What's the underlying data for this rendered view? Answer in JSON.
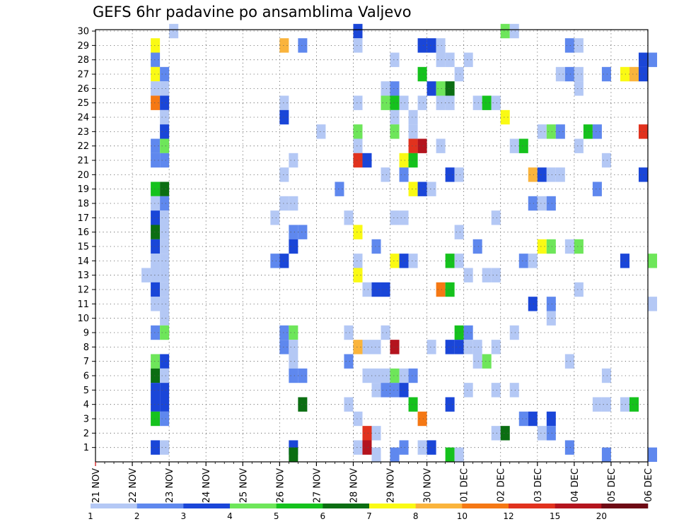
{
  "chart_data": {
    "type": "heatmap",
    "title": "GEFS 6hr padavine po ansamblima Valjevo",
    "xlabel": "",
    "ylabel": "",
    "x_ticks": [
      "21 NOV",
      "22 NOV",
      "23 NOV",
      "24 NOV",
      "25 NOV",
      "26 NOV",
      "27 NOV",
      "28 NOV",
      "29 NOV",
      "30 NOV",
      "01 DEC",
      "02 DEC",
      "03 DEC",
      "04 DEC",
      "05 DEC",
      "06 DEC"
    ],
    "y_ticks": [
      "1",
      "2",
      "3",
      "4",
      "5",
      "6",
      "7",
      "8",
      "9",
      "10",
      "11",
      "12",
      "13",
      "14",
      "15",
      "16",
      "17",
      "18",
      "19",
      "20",
      "21",
      "22",
      "23",
      "24",
      "25",
      "26",
      "27",
      "28",
      "29",
      "30"
    ],
    "xlim_days": [
      0,
      15
    ],
    "ylim": [
      0,
      30
    ],
    "steps_per_day": 4,
    "grid": true,
    "legend_position": "bottom",
    "colorbar": {
      "tick_labels": [
        "1",
        "2",
        "3",
        "4",
        "5",
        "6",
        "7",
        "8",
        "10",
        "12",
        "15",
        "20"
      ],
      "bins": [
        {
          "min": 1,
          "max": 2,
          "color": "#b4c8f5"
        },
        {
          "min": 2,
          "max": 3,
          "color": "#5f88ee"
        },
        {
          "min": 3,
          "max": 4,
          "color": "#1a46d8"
        },
        {
          "min": 4,
          "max": 5,
          "color": "#6ee65a"
        },
        {
          "min": 5,
          "max": 6,
          "color": "#15c21d"
        },
        {
          "min": 6,
          "max": 7,
          "color": "#0b6e12"
        },
        {
          "min": 7,
          "max": 8,
          "color": "#fafa14"
        },
        {
          "min": 8,
          "max": 10,
          "color": "#fab43c"
        },
        {
          "min": 10,
          "max": 12,
          "color": "#f57814"
        },
        {
          "min": 12,
          "max": 15,
          "color": "#e1321e"
        },
        {
          "min": 15,
          "max": 20,
          "color": "#b4141e"
        },
        {
          "min": 20,
          "max": 30,
          "color": "#6e0a14"
        }
      ]
    },
    "cells": [
      {
        "m": 30,
        "t": 8,
        "v": 1.5
      },
      {
        "m": 30,
        "t": 28,
        "v": 3.5
      },
      {
        "m": 30,
        "t": 44,
        "v": 4.5
      },
      {
        "m": 30,
        "t": 45,
        "v": 1.5
      },
      {
        "m": 29,
        "t": 6,
        "v": 7.5
      },
      {
        "m": 29,
        "t": 20,
        "v": 9
      },
      {
        "m": 29,
        "t": 22,
        "v": 2.5
      },
      {
        "m": 29,
        "t": 28,
        "v": 1.5
      },
      {
        "m": 29,
        "t": 35,
        "v": 3.5
      },
      {
        "m": 29,
        "t": 36,
        "v": 3.5
      },
      {
        "m": 29,
        "t": 37,
        "v": 1.5
      },
      {
        "m": 29,
        "t": 51,
        "v": 2.5
      },
      {
        "m": 29,
        "t": 52,
        "v": 1.5
      },
      {
        "m": 28,
        "t": 6,
        "v": 2.5
      },
      {
        "m": 28,
        "t": 32,
        "v": 1.5
      },
      {
        "m": 28,
        "t": 37,
        "v": 1.5
      },
      {
        "m": 28,
        "t": 38,
        "v": 1.5
      },
      {
        "m": 28,
        "t": 40,
        "v": 1.5
      },
      {
        "m": 28,
        "t": 59,
        "v": 3.5
      },
      {
        "m": 28,
        "t": 60,
        "v": 2.5
      },
      {
        "m": 27,
        "t": 6,
        "v": 7.5
      },
      {
        "m": 27,
        "t": 7,
        "v": 2.5
      },
      {
        "m": 27,
        "t": 35,
        "v": 5.5
      },
      {
        "m": 27,
        "t": 39,
        "v": 1.5
      },
      {
        "m": 27,
        "t": 50,
        "v": 1.5
      },
      {
        "m": 27,
        "t": 51,
        "v": 2.5
      },
      {
        "m": 27,
        "t": 52,
        "v": 1.5
      },
      {
        "m": 27,
        "t": 55,
        "v": 2.5
      },
      {
        "m": 27,
        "t": 57,
        "v": 7.5
      },
      {
        "m": 27,
        "t": 58,
        "v": 9
      },
      {
        "m": 27,
        "t": 59,
        "v": 3.5
      },
      {
        "m": 26,
        "t": 6,
        "v": 1.5
      },
      {
        "m": 26,
        "t": 7,
        "v": 1.5
      },
      {
        "m": 26,
        "t": 31,
        "v": 1.5
      },
      {
        "m": 26,
        "t": 32,
        "v": 2.5
      },
      {
        "m": 26,
        "t": 36,
        "v": 3.5
      },
      {
        "m": 26,
        "t": 37,
        "v": 4.5
      },
      {
        "m": 26,
        "t": 38,
        "v": 6.5
      },
      {
        "m": 26,
        "t": 52,
        "v": 1.5
      },
      {
        "m": 25,
        "t": 6,
        "v": 11
      },
      {
        "m": 25,
        "t": 7,
        "v": 3.5
      },
      {
        "m": 25,
        "t": 20,
        "v": 1.5
      },
      {
        "m": 25,
        "t": 28,
        "v": 1.5
      },
      {
        "m": 25,
        "t": 31,
        "v": 4.5
      },
      {
        "m": 25,
        "t": 32,
        "v": 5.5
      },
      {
        "m": 25,
        "t": 33,
        "v": 1.5
      },
      {
        "m": 25,
        "t": 35,
        "v": 1.5
      },
      {
        "m": 25,
        "t": 37,
        "v": 1.5
      },
      {
        "m": 25,
        "t": 38,
        "v": 1.5
      },
      {
        "m": 25,
        "t": 41,
        "v": 1.5
      },
      {
        "m": 25,
        "t": 42,
        "v": 5.5
      },
      {
        "m": 25,
        "t": 43,
        "v": 1.5
      },
      {
        "m": 24,
        "t": 7,
        "v": 1.5
      },
      {
        "m": 24,
        "t": 20,
        "v": 3.5
      },
      {
        "m": 24,
        "t": 32,
        "v": 1.5
      },
      {
        "m": 24,
        "t": 34,
        "v": 1.5
      },
      {
        "m": 24,
        "t": 44,
        "v": 7.5
      },
      {
        "m": 23,
        "t": 7,
        "v": 3.5
      },
      {
        "m": 23,
        "t": 24,
        "v": 1.5
      },
      {
        "m": 23,
        "t": 28,
        "v": 4.5
      },
      {
        "m": 23,
        "t": 32,
        "v": 4.5
      },
      {
        "m": 23,
        "t": 34,
        "v": 1.5
      },
      {
        "m": 23,
        "t": 48,
        "v": 1.5
      },
      {
        "m": 23,
        "t": 49,
        "v": 4.5
      },
      {
        "m": 23,
        "t": 50,
        "v": 2.5
      },
      {
        "m": 23,
        "t": 53,
        "v": 5.5
      },
      {
        "m": 23,
        "t": 54,
        "v": 2.5
      },
      {
        "m": 23,
        "t": 59,
        "v": 13
      },
      {
        "m": 22,
        "t": 6,
        "v": 2.5
      },
      {
        "m": 22,
        "t": 7,
        "v": 4.5
      },
      {
        "m": 22,
        "t": 28,
        "v": 1.5
      },
      {
        "m": 22,
        "t": 34,
        "v": 13
      },
      {
        "m": 22,
        "t": 35,
        "v": 17
      },
      {
        "m": 22,
        "t": 37,
        "v": 1.5
      },
      {
        "m": 22,
        "t": 45,
        "v": 1.5
      },
      {
        "m": 22,
        "t": 46,
        "v": 5.5
      },
      {
        "m": 22,
        "t": 52,
        "v": 1.5
      },
      {
        "m": 21,
        "t": 6,
        "v": 2.5
      },
      {
        "m": 21,
        "t": 7,
        "v": 2.5
      },
      {
        "m": 21,
        "t": 21,
        "v": 1.5
      },
      {
        "m": 21,
        "t": 28,
        "v": 13
      },
      {
        "m": 21,
        "t": 29,
        "v": 3.5
      },
      {
        "m": 21,
        "t": 33,
        "v": 7.5
      },
      {
        "m": 21,
        "t": 34,
        "v": 5.5
      },
      {
        "m": 21,
        "t": 55,
        "v": 1.5
      },
      {
        "m": 20,
        "t": 20,
        "v": 1.5
      },
      {
        "m": 20,
        "t": 31,
        "v": 1.5
      },
      {
        "m": 20,
        "t": 33,
        "v": 2.5
      },
      {
        "m": 20,
        "t": 38,
        "v": 3.5
      },
      {
        "m": 20,
        "t": 39,
        "v": 1.5
      },
      {
        "m": 20,
        "t": 47,
        "v": 9
      },
      {
        "m": 20,
        "t": 48,
        "v": 3.5
      },
      {
        "m": 20,
        "t": 49,
        "v": 1.5
      },
      {
        "m": 20,
        "t": 50,
        "v": 1.5
      },
      {
        "m": 20,
        "t": 59,
        "v": 3.5
      },
      {
        "m": 19,
        "t": 6,
        "v": 5.5
      },
      {
        "m": 19,
        "t": 7,
        "v": 6.5
      },
      {
        "m": 19,
        "t": 26,
        "v": 2.5
      },
      {
        "m": 19,
        "t": 34,
        "v": 7.5
      },
      {
        "m": 19,
        "t": 35,
        "v": 3.5
      },
      {
        "m": 19,
        "t": 36,
        "v": 1.5
      },
      {
        "m": 19,
        "t": 54,
        "v": 2.5
      },
      {
        "m": 18,
        "t": 6,
        "v": 1.5
      },
      {
        "m": 18,
        "t": 7,
        "v": 2.5
      },
      {
        "m": 18,
        "t": 20,
        "v": 1.5
      },
      {
        "m": 18,
        "t": 21,
        "v": 1.5
      },
      {
        "m": 18,
        "t": 47,
        "v": 2.5
      },
      {
        "m": 18,
        "t": 48,
        "v": 1.5
      },
      {
        "m": 18,
        "t": 49,
        "v": 2.5
      },
      {
        "m": 17,
        "t": 6,
        "v": 3.5
      },
      {
        "m": 17,
        "t": 7,
        "v": 1.5
      },
      {
        "m": 17,
        "t": 19,
        "v": 1.5
      },
      {
        "m": 17,
        "t": 27,
        "v": 1.5
      },
      {
        "m": 17,
        "t": 32,
        "v": 1.5
      },
      {
        "m": 17,
        "t": 33,
        "v": 1.5
      },
      {
        "m": 17,
        "t": 43,
        "v": 1.5
      },
      {
        "m": 16,
        "t": 6,
        "v": 6.5
      },
      {
        "m": 16,
        "t": 7,
        "v": 1.5
      },
      {
        "m": 16,
        "t": 21,
        "v": 2.5
      },
      {
        "m": 16,
        "t": 22,
        "v": 2.5
      },
      {
        "m": 16,
        "t": 28,
        "v": 7.5
      },
      {
        "m": 16,
        "t": 39,
        "v": 1.5
      },
      {
        "m": 15,
        "t": 6,
        "v": 3.5
      },
      {
        "m": 15,
        "t": 7,
        "v": 1.5
      },
      {
        "m": 15,
        "t": 21,
        "v": 3.5
      },
      {
        "m": 15,
        "t": 30,
        "v": 2.5
      },
      {
        "m": 15,
        "t": 41,
        "v": 2.5
      },
      {
        "m": 15,
        "t": 48,
        "v": 7.5
      },
      {
        "m": 15,
        "t": 49,
        "v": 4.5
      },
      {
        "m": 15,
        "t": 51,
        "v": 1.5
      },
      {
        "m": 15,
        "t": 52,
        "v": 4.5
      },
      {
        "m": 14,
        "t": 6,
        "v": 1.5
      },
      {
        "m": 14,
        "t": 7,
        "v": 1.5
      },
      {
        "m": 14,
        "t": 19,
        "v": 2.5
      },
      {
        "m": 14,
        "t": 20,
        "v": 3.5
      },
      {
        "m": 14,
        "t": 28,
        "v": 1.5
      },
      {
        "m": 14,
        "t": 32,
        "v": 7.5
      },
      {
        "m": 14,
        "t": 33,
        "v": 3.5
      },
      {
        "m": 14,
        "t": 34,
        "v": 1.5
      },
      {
        "m": 14,
        "t": 38,
        "v": 5.5
      },
      {
        "m": 14,
        "t": 39,
        "v": 1.5
      },
      {
        "m": 14,
        "t": 46,
        "v": 2.5
      },
      {
        "m": 14,
        "t": 47,
        "v": 1.5
      },
      {
        "m": 14,
        "t": 57,
        "v": 3.5
      },
      {
        "m": 14,
        "t": 60,
        "v": 4.5
      },
      {
        "m": 13,
        "t": 5,
        "v": 1.5
      },
      {
        "m": 13,
        "t": 6,
        "v": 1.5
      },
      {
        "m": 13,
        "t": 7,
        "v": 1.5
      },
      {
        "m": 13,
        "t": 28,
        "v": 7.5
      },
      {
        "m": 13,
        "t": 40,
        "v": 1.5
      },
      {
        "m": 13,
        "t": 42,
        "v": 1.5
      },
      {
        "m": 13,
        "t": 43,
        "v": 1.5
      },
      {
        "m": 12,
        "t": 6,
        "v": 3.5
      },
      {
        "m": 12,
        "t": 7,
        "v": 1.5
      },
      {
        "m": 12,
        "t": 29,
        "v": 1.5
      },
      {
        "m": 12,
        "t": 30,
        "v": 3.5
      },
      {
        "m": 12,
        "t": 31,
        "v": 3.5
      },
      {
        "m": 12,
        "t": 37,
        "v": 11
      },
      {
        "m": 12,
        "t": 38,
        "v": 5.5
      },
      {
        "m": 12,
        "t": 52,
        "v": 1.5
      },
      {
        "m": 11,
        "t": 6,
        "v": 1.5
      },
      {
        "m": 11,
        "t": 7,
        "v": 1.5
      },
      {
        "m": 11,
        "t": 47,
        "v": 3.5
      },
      {
        "m": 11,
        "t": 49,
        "v": 2.5
      },
      {
        "m": 11,
        "t": 60,
        "v": 1.5
      },
      {
        "m": 10,
        "t": 7,
        "v": 1.5
      },
      {
        "m": 10,
        "t": 49,
        "v": 1.5
      },
      {
        "m": 9,
        "t": 6,
        "v": 2.5
      },
      {
        "m": 9,
        "t": 7,
        "v": 4.5
      },
      {
        "m": 9,
        "t": 20,
        "v": 2.5
      },
      {
        "m": 9,
        "t": 21,
        "v": 4.5
      },
      {
        "m": 9,
        "t": 27,
        "v": 1.5
      },
      {
        "m": 9,
        "t": 31,
        "v": 1.5
      },
      {
        "m": 9,
        "t": 39,
        "v": 5.5
      },
      {
        "m": 9,
        "t": 40,
        "v": 2.5
      },
      {
        "m": 9,
        "t": 45,
        "v": 1.5
      },
      {
        "m": 8,
        "t": 20,
        "v": 2.5
      },
      {
        "m": 8,
        "t": 21,
        "v": 1.5
      },
      {
        "m": 8,
        "t": 28,
        "v": 9
      },
      {
        "m": 8,
        "t": 29,
        "v": 1.5
      },
      {
        "m": 8,
        "t": 30,
        "v": 1.5
      },
      {
        "m": 8,
        "t": 32,
        "v": 17
      },
      {
        "m": 8,
        "t": 36,
        "v": 1.5
      },
      {
        "m": 8,
        "t": 38,
        "v": 3.5
      },
      {
        "m": 8,
        "t": 39,
        "v": 3.5
      },
      {
        "m": 8,
        "t": 40,
        "v": 1.5
      },
      {
        "m": 8,
        "t": 41,
        "v": 1.5
      },
      {
        "m": 8,
        "t": 43,
        "v": 1.5
      },
      {
        "m": 7,
        "t": 6,
        "v": 4.5
      },
      {
        "m": 7,
        "t": 7,
        "v": 3.5
      },
      {
        "m": 7,
        "t": 21,
        "v": 1.5
      },
      {
        "m": 7,
        "t": 27,
        "v": 2.5
      },
      {
        "m": 7,
        "t": 41,
        "v": 1.5
      },
      {
        "m": 7,
        "t": 42,
        "v": 4.5
      },
      {
        "m": 7,
        "t": 51,
        "v": 1.5
      },
      {
        "m": 6,
        "t": 6,
        "v": 6.5
      },
      {
        "m": 6,
        "t": 7,
        "v": 1.5
      },
      {
        "m": 6,
        "t": 21,
        "v": 2.5
      },
      {
        "m": 6,
        "t": 22,
        "v": 2.5
      },
      {
        "m": 6,
        "t": 29,
        "v": 1.5
      },
      {
        "m": 6,
        "t": 30,
        "v": 1.5
      },
      {
        "m": 6,
        "t": 31,
        "v": 1.5
      },
      {
        "m": 6,
        "t": 32,
        "v": 4.5
      },
      {
        "m": 6,
        "t": 33,
        "v": 1.5
      },
      {
        "m": 6,
        "t": 34,
        "v": 2.5
      },
      {
        "m": 6,
        "t": 55,
        "v": 1.5
      },
      {
        "m": 5,
        "t": 6,
        "v": 3.5
      },
      {
        "m": 5,
        "t": 7,
        "v": 3.5
      },
      {
        "m": 5,
        "t": 30,
        "v": 1.5
      },
      {
        "m": 5,
        "t": 31,
        "v": 2.5
      },
      {
        "m": 5,
        "t": 32,
        "v": 2.5
      },
      {
        "m": 5,
        "t": 33,
        "v": 3.5
      },
      {
        "m": 5,
        "t": 40,
        "v": 1.5
      },
      {
        "m": 5,
        "t": 43,
        "v": 1.5
      },
      {
        "m": 5,
        "t": 45,
        "v": 1.5
      },
      {
        "m": 4,
        "t": 6,
        "v": 3.5
      },
      {
        "m": 4,
        "t": 7,
        "v": 3.5
      },
      {
        "m": 4,
        "t": 22,
        "v": 6.5
      },
      {
        "m": 4,
        "t": 27,
        "v": 1.5
      },
      {
        "m": 4,
        "t": 34,
        "v": 5.5
      },
      {
        "m": 4,
        "t": 38,
        "v": 3.5
      },
      {
        "m": 4,
        "t": 54,
        "v": 1.5
      },
      {
        "m": 4,
        "t": 55,
        "v": 1.5
      },
      {
        "m": 4,
        "t": 57,
        "v": 1.5
      },
      {
        "m": 4,
        "t": 58,
        "v": 5.5
      },
      {
        "m": 3,
        "t": 6,
        "v": 5.5
      },
      {
        "m": 3,
        "t": 7,
        "v": 2.5
      },
      {
        "m": 3,
        "t": 28,
        "v": 1.5
      },
      {
        "m": 3,
        "t": 35,
        "v": 11
      },
      {
        "m": 3,
        "t": 46,
        "v": 2.5
      },
      {
        "m": 3,
        "t": 47,
        "v": 3.5
      },
      {
        "m": 3,
        "t": 49,
        "v": 3.5
      },
      {
        "m": 2,
        "t": 29,
        "v": 13
      },
      {
        "m": 2,
        "t": 30,
        "v": 1.5
      },
      {
        "m": 2,
        "t": 43,
        "v": 1.5
      },
      {
        "m": 2,
        "t": 44,
        "v": 6.5
      },
      {
        "m": 2,
        "t": 48,
        "v": 1.5
      },
      {
        "m": 2,
        "t": 49,
        "v": 2.5
      },
      {
        "m": 1,
        "t": 6,
        "v": 3.5
      },
      {
        "m": 1,
        "t": 7,
        "v": 1.5
      },
      {
        "m": 1,
        "t": 21,
        "v": 3.5
      },
      {
        "m": 1,
        "t": 28,
        "v": 1.5
      },
      {
        "m": 1,
        "t": 29,
        "v": 17
      },
      {
        "m": 1,
        "t": 33,
        "v": 2.5
      },
      {
        "m": 1,
        "t": 35,
        "v": 1.5
      },
      {
        "m": 1,
        "t": 36,
        "v": 3.5
      },
      {
        "m": 1,
        "t": 51,
        "v": 2.5
      },
      {
        "m": 0.5,
        "t": 21,
        "v": 6.5
      },
      {
        "m": 0.5,
        "t": 30,
        "v": 1.5
      },
      {
        "m": 0.5,
        "t": 32,
        "v": 2.5
      },
      {
        "m": 0.5,
        "t": 38,
        "v": 5.5
      },
      {
        "m": 0.5,
        "t": 39,
        "v": 1.5
      },
      {
        "m": 0.5,
        "t": 55,
        "v": 2.5
      },
      {
        "m": 0.5,
        "t": 60,
        "v": 2.5
      }
    ]
  }
}
